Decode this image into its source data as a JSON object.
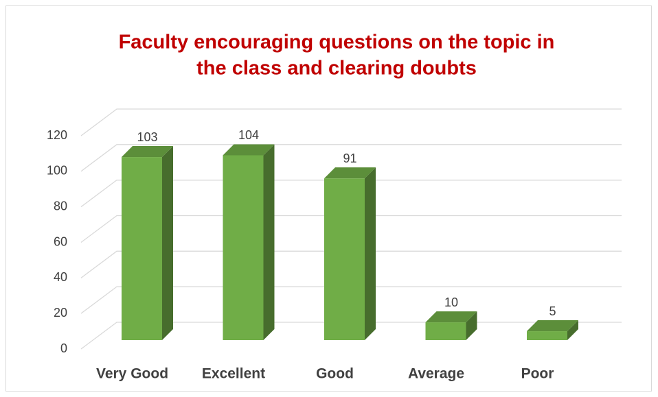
{
  "chart_data": {
    "type": "bar3d",
    "title": [
      "Faculty encouraging questions on the topic in",
      "the class and clearing doubts"
    ],
    "categories": [
      "Very Good",
      "Excellent",
      "Good",
      "Average",
      "Poor"
    ],
    "values": [
      103,
      104,
      91,
      10,
      5
    ],
    "color": "#70ad47",
    "ylim": [
      0,
      120
    ],
    "yticks": [
      0,
      20,
      40,
      60,
      80,
      100,
      120
    ],
    "grid": true
  }
}
